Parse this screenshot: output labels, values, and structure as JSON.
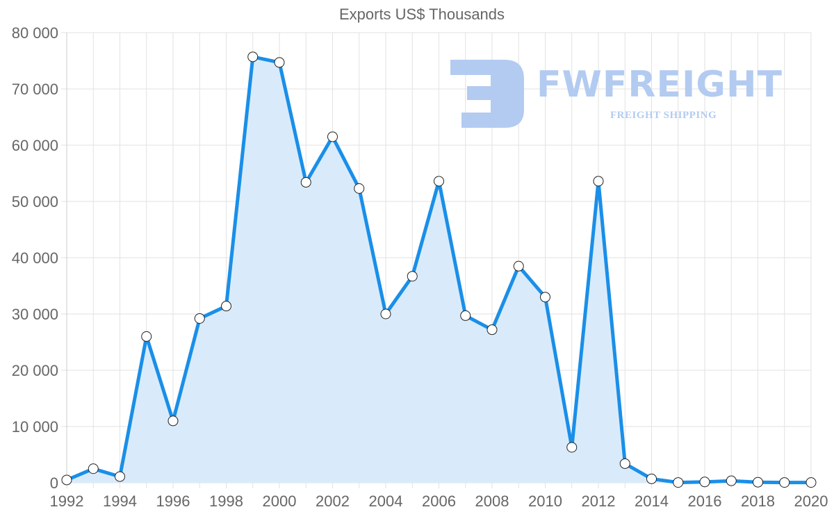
{
  "chart_data": {
    "type": "area",
    "title": "Exports US$ Thousands",
    "xlabel": "",
    "ylabel": "",
    "x": [
      1992,
      1993,
      1994,
      1995,
      1996,
      1997,
      1998,
      1999,
      2000,
      2001,
      2002,
      2003,
      2004,
      2005,
      2006,
      2007,
      2008,
      2009,
      2010,
      2011,
      2012,
      2013,
      2014,
      2015,
      2016,
      2017,
      2018,
      2019,
      2020
    ],
    "series": [
      {
        "name": "Exports US$ Thousands",
        "values": [
          500,
          2500,
          1100,
          26000,
          11000,
          29200,
          31400,
          75700,
          74700,
          53400,
          61500,
          52300,
          30000,
          36700,
          53600,
          29700,
          27200,
          38500,
          33000,
          6300,
          53600,
          3400,
          700,
          50,
          150,
          350,
          100,
          50,
          50
        ],
        "line_color": "#1a8fe8",
        "fill_color": "#d9ebfb",
        "marker": "circle-white"
      }
    ],
    "ylim": [
      0,
      80000
    ],
    "yticks": [
      0,
      10000,
      20000,
      30000,
      40000,
      50000,
      60000,
      70000,
      80000
    ],
    "ytick_labels": [
      "0",
      "10 000",
      "20 000",
      "30 000",
      "40 000",
      "50 000",
      "60 000",
      "70 000",
      "80 000"
    ],
    "xticks": [
      1992,
      1994,
      1996,
      1998,
      2000,
      2002,
      2004,
      2006,
      2008,
      2010,
      2012,
      2014,
      2016,
      2018,
      2020
    ],
    "xtick_labels": [
      "1992",
      "1994",
      "1996",
      "1998",
      "2000",
      "2002",
      "2004",
      "2006",
      "2008",
      "2010",
      "2012",
      "2014",
      "2016",
      "2018",
      "2020"
    ],
    "grid": true,
    "legend": "none"
  },
  "watermark": {
    "brand": "FWFREIGHT",
    "tagline": "FREIGHT SHIPPING"
  }
}
